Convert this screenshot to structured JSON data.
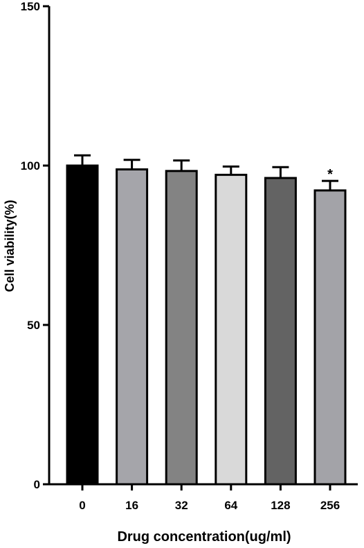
{
  "chart_data": {
    "type": "bar",
    "title": "",
    "xlabel": "Drug concentration(ug/ml)",
    "ylabel": "Cell viability(%)",
    "ylim": [
      0,
      150
    ],
    "yticks": [
      0,
      50,
      100,
      150
    ],
    "grid": false,
    "categories": [
      "0",
      "16",
      "32",
      "64",
      "128",
      "256"
    ],
    "values": [
      100,
      98.8,
      98.3,
      97.1,
      96.1,
      92.2
    ],
    "errors": [
      3.2,
      3.0,
      3.3,
      2.6,
      3.4,
      3.0
    ],
    "colors": [
      "#000000",
      "#a5a5aa",
      "#838383",
      "#d9d9d9",
      "#636363",
      "#a3a3a8"
    ],
    "annotations": [
      {
        "category": "256",
        "text": "*"
      }
    ]
  }
}
